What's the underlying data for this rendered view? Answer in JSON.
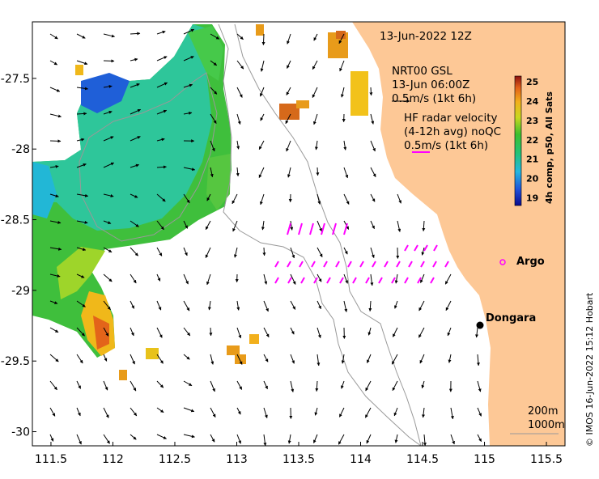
{
  "map": {
    "date_title": "13-Jun-2022 12Z",
    "nrt_title": "NRT00 GSL",
    "nrt_time": "13-Jun 06:00Z",
    "nrt_scale": "0.5m/s (1kt 6h)",
    "hf_title": "HF radar velocity",
    "hf_avg": "(4-12h avg) noQC",
    "hf_scale": "0.5m/s (1kt 6h)",
    "places": [
      {
        "name": "Argo",
        "lon": 115.03,
        "lat": -28.77
      },
      {
        "name": "Dongara",
        "lon": 114.94,
        "lat": -29.26
      }
    ],
    "depth_contours": [
      "200m",
      "1000m"
    ],
    "credit": "© IMOS 16-Jun-2022 15:12 Hobart",
    "lon_ticks": [
      "111.5",
      "112",
      "112.5",
      "113",
      "113.5",
      "114",
      "114.5",
      "115",
      "115.5"
    ],
    "lat_ticks": [
      "-27.5",
      "-28",
      "-28.5",
      "-29",
      "-29.5",
      "-30"
    ],
    "lon_range": [
      111.35,
      115.65
    ],
    "lat_range": [
      -30.1,
      -27.1
    ],
    "colorbar": {
      "label": "4h comp, p50, All Sats",
      "ticks": [
        "25",
        "24",
        "23",
        "22",
        "21",
        "20",
        "19"
      ],
      "range": [
        18.6,
        25.3
      ]
    },
    "colors": {
      "land": "#fdc896",
      "hf_vectors": "#ff00ff",
      "argo_marker": "#ff00ff",
      "contour": "#999999"
    }
  }
}
